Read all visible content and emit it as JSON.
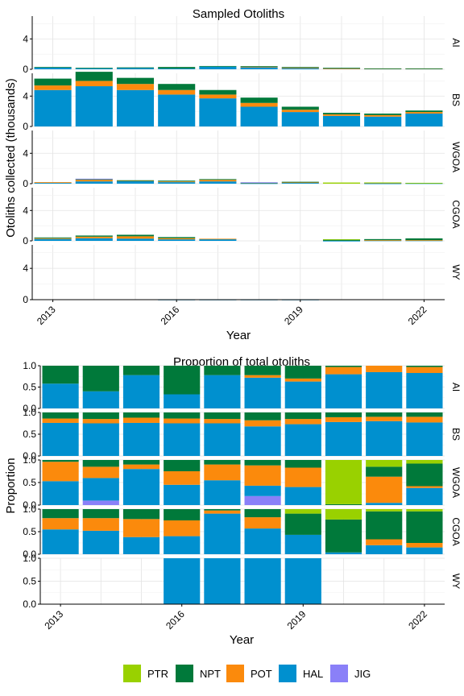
{
  "colors": {
    "PTR": "#99D100",
    "NPT": "#00793A",
    "POT": "#FB8A0C",
    "HAL": "#0090CF",
    "JIG": "#8A80F8",
    "grid": "#E3E3E3",
    "axis": "#000000",
    "text": "#000000",
    "background": "#FFFFFF"
  },
  "legend": {
    "placement": "bottom",
    "entries": [
      "PTR",
      "NPT",
      "POT",
      "HAL",
      "JIG"
    ]
  },
  "chart_data": [
    {
      "type": "bar",
      "stacked": true,
      "title": "Sampled Otoliths",
      "xlabel": "Year",
      "ylabel": "Otoliths collected (thousands)",
      "x_ticks": [
        2013,
        2016,
        2019,
        2022
      ],
      "x_range": [
        2012.5,
        2022.5
      ],
      "ylim": [
        0,
        7
      ],
      "y_ticks": [
        0,
        4
      ],
      "grid": true,
      "stack_order": [
        "HAL",
        "POT",
        "NPT",
        "PTR",
        "JIG"
      ],
      "panels": [
        {
          "name": "AI",
          "data": [
            {
              "x": 2013,
              "HAL": 0.25,
              "NPT": 0.05
            },
            {
              "x": 2014,
              "HAL": 0.12,
              "NPT": 0.08
            },
            {
              "x": 2015,
              "HAL": 0.2,
              "NPT": 0.05
            },
            {
              "x": 2016,
              "HAL": 0.1,
              "NPT": 0.2
            },
            {
              "x": 2017,
              "HAL": 0.35,
              "NPT": 0.08
            },
            {
              "x": 2018,
              "HAL": 0.3,
              "POT": 0.04,
              "NPT": 0.08
            },
            {
              "x": 2019,
              "HAL": 0.2,
              "POT": 0.02,
              "NPT": 0.08
            },
            {
              "x": 2020,
              "HAL": 0.1,
              "POT": 0.02,
              "NPT": 0.08
            },
            {
              "x": 2021,
              "HAL": 0.08,
              "POT": 0.02,
              "NPT": 0.02
            },
            {
              "x": 2022,
              "HAL": 0.08,
              "POT": 0.02,
              "NPT": 0.02
            }
          ]
        },
        {
          "name": "BS",
          "data": [
            {
              "x": 2013,
              "HAL": 4.8,
              "POT": 0.6,
              "NPT": 0.9
            },
            {
              "x": 2014,
              "HAL": 5.3,
              "POT": 0.7,
              "NPT": 1.2
            },
            {
              "x": 2015,
              "HAL": 4.8,
              "POT": 0.8,
              "NPT": 0.8
            },
            {
              "x": 2016,
              "HAL": 4.2,
              "POT": 0.6,
              "NPT": 0.8
            },
            {
              "x": 2017,
              "HAL": 3.7,
              "POT": 0.5,
              "NPT": 0.6
            },
            {
              "x": 2018,
              "HAL": 2.6,
              "POT": 0.5,
              "NPT": 0.7
            },
            {
              "x": 2019,
              "HAL": 1.9,
              "POT": 0.3,
              "NPT": 0.4
            },
            {
              "x": 2020,
              "HAL": 1.4,
              "POT": 0.2,
              "NPT": 0.2
            },
            {
              "x": 2021,
              "HAL": 1.3,
              "POT": 0.2,
              "NPT": 0.2
            },
            {
              "x": 2022,
              "HAL": 1.7,
              "POT": 0.2,
              "NPT": 0.2
            }
          ]
        },
        {
          "name": "WGOA",
          "data": [
            {
              "x": 2013,
              "HAL": 0.1,
              "POT": 0.1
            },
            {
              "x": 2014,
              "JIG": 0.05,
              "HAL": 0.3,
              "POT": 0.2,
              "NPT": 0.1
            },
            {
              "x": 2015,
              "HAL": 0.35,
              "POT": 0.05,
              "NPT": 0.05
            },
            {
              "x": 2016,
              "HAL": 0.2,
              "POT": 0.1,
              "NPT": 0.1
            },
            {
              "x": 2017,
              "HAL": 0.3,
              "POT": 0.2,
              "NPT": 0.1
            },
            {
              "x": 2018,
              "JIG": 0.04,
              "HAL": 0.05,
              "POT": 0.07,
              "NPT": 0.02
            },
            {
              "x": 2019,
              "HAL": 0.1,
              "POT": 0.1,
              "NPT": 0.05
            },
            {
              "x": 2020,
              "PTR": 0.15
            },
            {
              "x": 2021,
              "HAL": 0.03,
              "POT": 0.08,
              "NPT": 0.02,
              "PTR": 0.03
            },
            {
              "x": 2022,
              "HAL": 0.05,
              "NPT": 0.05,
              "PTR": 0.01
            }
          ]
        },
        {
          "name": "CGOA",
          "data": [
            {
              "x": 2013,
              "HAL": 0.25,
              "POT": 0.1,
              "NPT": 0.1
            },
            {
              "x": 2014,
              "HAL": 0.35,
              "POT": 0.2,
              "NPT": 0.15
            },
            {
              "x": 2015,
              "HAL": 0.3,
              "POT": 0.3,
              "NPT": 0.2
            },
            {
              "x": 2016,
              "HAL": 0.2,
              "POT": 0.15,
              "NPT": 0.15
            },
            {
              "x": 2017,
              "HAL": 0.25,
              "POT": 0.03
            },
            {
              "x": 2020,
              "HAL": 0.01,
              "NPT": 0.15,
              "PTR": 0.05
            },
            {
              "x": 2021,
              "HAL": 0.05,
              "POT": 0.03,
              "NPT": 0.15
            },
            {
              "x": 2022,
              "HAL": 0.05,
              "POT": 0.03,
              "NPT": 0.25
            }
          ]
        },
        {
          "name": "WY",
          "data": [
            {
              "x": 2016,
              "HAL": 0.01
            },
            {
              "x": 2017,
              "HAL": 0.01
            },
            {
              "x": 2018,
              "HAL": 0.01
            },
            {
              "x": 2019,
              "HAL": 0.01
            }
          ]
        }
      ]
    },
    {
      "type": "bar",
      "stacked": true,
      "title": "Proportion of total otoliths",
      "xlabel": "Year",
      "ylabel": "Proportion",
      "x_ticks": [
        2013,
        2016,
        2019,
        2022
      ],
      "x_range": [
        2012.5,
        2022.5
      ],
      "ylim": [
        0,
        1
      ],
      "y_ticks": [
        0.0,
        0.5,
        1.0
      ],
      "grid": true,
      "stack_order": [
        "JIG",
        "HAL",
        "POT",
        "NPT",
        "PTR"
      ],
      "panels": [
        {
          "name": "AI",
          "data": [
            {
              "x": 2013,
              "HAL": 0.58,
              "NPT": 0.42
            },
            {
              "x": 2014,
              "HAL": 0.4,
              "NPT": 0.6
            },
            {
              "x": 2015,
              "HAL": 0.78,
              "NPT": 0.22
            },
            {
              "x": 2016,
              "HAL": 0.33,
              "NPT": 0.67
            },
            {
              "x": 2017,
              "HAL": 0.78,
              "NPT": 0.22
            },
            {
              "x": 2018,
              "HAL": 0.72,
              "POT": 0.06,
              "NPT": 0.22
            },
            {
              "x": 2019,
              "HAL": 0.63,
              "POT": 0.07,
              "NPT": 0.3
            },
            {
              "x": 2020,
              "HAL": 0.8,
              "POT": 0.17,
              "NPT": 0.03
            },
            {
              "x": 2021,
              "HAL": 0.85,
              "POT": 0.15
            },
            {
              "x": 2022,
              "HAL": 0.83,
              "POT": 0.14,
              "NPT": 0.03
            }
          ]
        },
        {
          "name": "BS",
          "data": [
            {
              "x": 2013,
              "HAL": 0.76,
              "POT": 0.1,
              "NPT": 0.14
            },
            {
              "x": 2014,
              "HAL": 0.75,
              "POT": 0.1,
              "NPT": 0.15
            },
            {
              "x": 2015,
              "HAL": 0.76,
              "POT": 0.12,
              "NPT": 0.12
            },
            {
              "x": 2016,
              "HAL": 0.75,
              "POT": 0.11,
              "NPT": 0.14
            },
            {
              "x": 2017,
              "HAL": 0.75,
              "POT": 0.1,
              "NPT": 0.15
            },
            {
              "x": 2018,
              "HAL": 0.68,
              "POT": 0.14,
              "NPT": 0.18
            },
            {
              "x": 2019,
              "HAL": 0.73,
              "POT": 0.12,
              "NPT": 0.15
            },
            {
              "x": 2020,
              "HAL": 0.78,
              "POT": 0.11,
              "NPT": 0.11
            },
            {
              "x": 2021,
              "HAL": 0.8,
              "POT": 0.1,
              "NPT": 0.1
            },
            {
              "x": 2022,
              "HAL": 0.77,
              "POT": 0.13,
              "NPT": 0.1
            }
          ]
        },
        {
          "name": "WGOA",
          "data": [
            {
              "x": 2013,
              "HAL": 0.53,
              "POT": 0.43,
              "NPT": 0.04
            },
            {
              "x": 2014,
              "JIG": 0.1,
              "HAL": 0.5,
              "POT": 0.25,
              "NPT": 0.15
            },
            {
              "x": 2015,
              "HAL": 0.8,
              "POT": 0.1,
              "NPT": 0.1
            },
            {
              "x": 2016,
              "HAL": 0.45,
              "POT": 0.3,
              "NPT": 0.25
            },
            {
              "x": 2017,
              "HAL": 0.55,
              "POT": 0.35,
              "NPT": 0.1
            },
            {
              "x": 2018,
              "JIG": 0.2,
              "HAL": 0.23,
              "POT": 0.45,
              "NPT": 0.12
            },
            {
              "x": 2019,
              "HAL": 0.4,
              "POT": 0.43,
              "NPT": 0.17
            },
            {
              "x": 2020,
              "NPT": 0.02,
              "PTR": 0.98
            },
            {
              "x": 2021,
              "HAL": 0.05,
              "POT": 0.58,
              "NPT": 0.22,
              "PTR": 0.15
            },
            {
              "x": 2022,
              "HAL": 0.38,
              "POT": 0.04,
              "NPT": 0.5,
              "PTR": 0.08
            }
          ]
        },
        {
          "name": "CGOA",
          "data": [
            {
              "x": 2013,
              "HAL": 0.55,
              "POT": 0.25,
              "NPT": 0.2
            },
            {
              "x": 2014,
              "HAL": 0.52,
              "POT": 0.28,
              "NPT": 0.2
            },
            {
              "x": 2015,
              "HAL": 0.38,
              "POT": 0.4,
              "NPT": 0.22
            },
            {
              "x": 2016,
              "HAL": 0.4,
              "POT": 0.35,
              "NPT": 0.25
            },
            {
              "x": 2017,
              "HAL": 0.9,
              "POT": 0.07,
              "NPT": 0.03
            },
            {
              "x": 2018,
              "HAL": 0.57,
              "POT": 0.25,
              "NPT": 0.18
            },
            {
              "x": 2019,
              "HAL": 0.43,
              "NPT": 0.47,
              "PTR": 0.1
            },
            {
              "x": 2020,
              "HAL": 0.04,
              "NPT": 0.73,
              "PTR": 0.23
            },
            {
              "x": 2021,
              "HAL": 0.2,
              "POT": 0.13,
              "NPT": 0.62,
              "PTR": 0.05
            },
            {
              "x": 2022,
              "HAL": 0.15,
              "POT": 0.1,
              "NPT": 0.7,
              "PTR": 0.05
            }
          ]
        },
        {
          "name": "WY",
          "data": [
            {
              "x": 2016,
              "HAL": 1.0
            },
            {
              "x": 2017,
              "HAL": 1.0
            },
            {
              "x": 2018,
              "HAL": 1.0
            },
            {
              "x": 2019,
              "HAL": 1.0
            }
          ]
        }
      ]
    }
  ]
}
